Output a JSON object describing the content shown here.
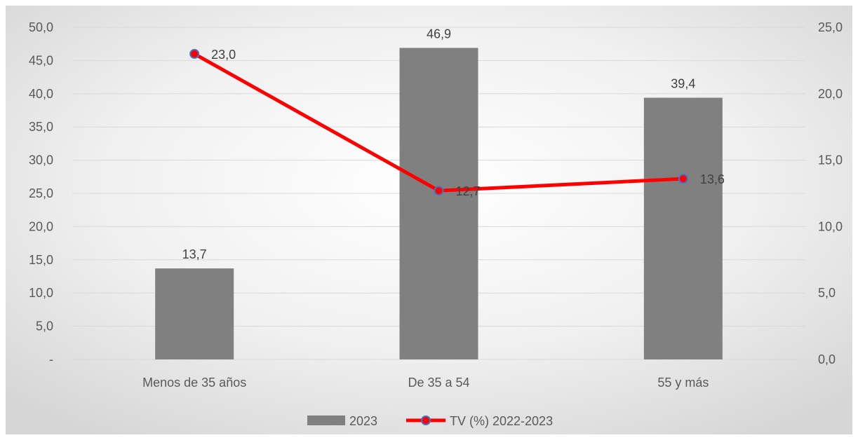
{
  "chart_data": {
    "type": "bar",
    "categories": [
      "Menos de 35 años",
      "De 35 a 54",
      "55 y más"
    ],
    "series": [
      {
        "name": "2023",
        "type": "bar",
        "axis": "left",
        "values": [
          13.7,
          46.9,
          39.4
        ],
        "labels": [
          "13,7",
          "46,9",
          "39,4"
        ],
        "color": "#808080"
      },
      {
        "name": "TV (%) 2022-2023",
        "type": "line",
        "axis": "right",
        "values": [
          23.0,
          12.7,
          13.6
        ],
        "labels": [
          "23,0",
          "12,7",
          "13,6"
        ],
        "color": "#ff0000",
        "marker_color": "#4472c4"
      }
    ],
    "y_left": {
      "ylim": [
        0,
        50
      ],
      "ticks": [
        0,
        5,
        10,
        15,
        20,
        25,
        30,
        35,
        40,
        45,
        50
      ],
      "tick_labels": [
        "-",
        "5,0",
        "10,0",
        "15,0",
        "20,0",
        "25,0",
        "30,0",
        "35,0",
        "40,0",
        "45,0",
        "50,0"
      ]
    },
    "y_right": {
      "ylim": [
        0,
        25
      ],
      "ticks": [
        0,
        5,
        10,
        15,
        20,
        25
      ],
      "tick_labels": [
        "0,0",
        "5,0",
        "10,0",
        "15,0",
        "20,0",
        "25,0"
      ]
    },
    "grid": true,
    "legend": "bottom",
    "title": "",
    "xlabel": "",
    "ylabel": ""
  }
}
